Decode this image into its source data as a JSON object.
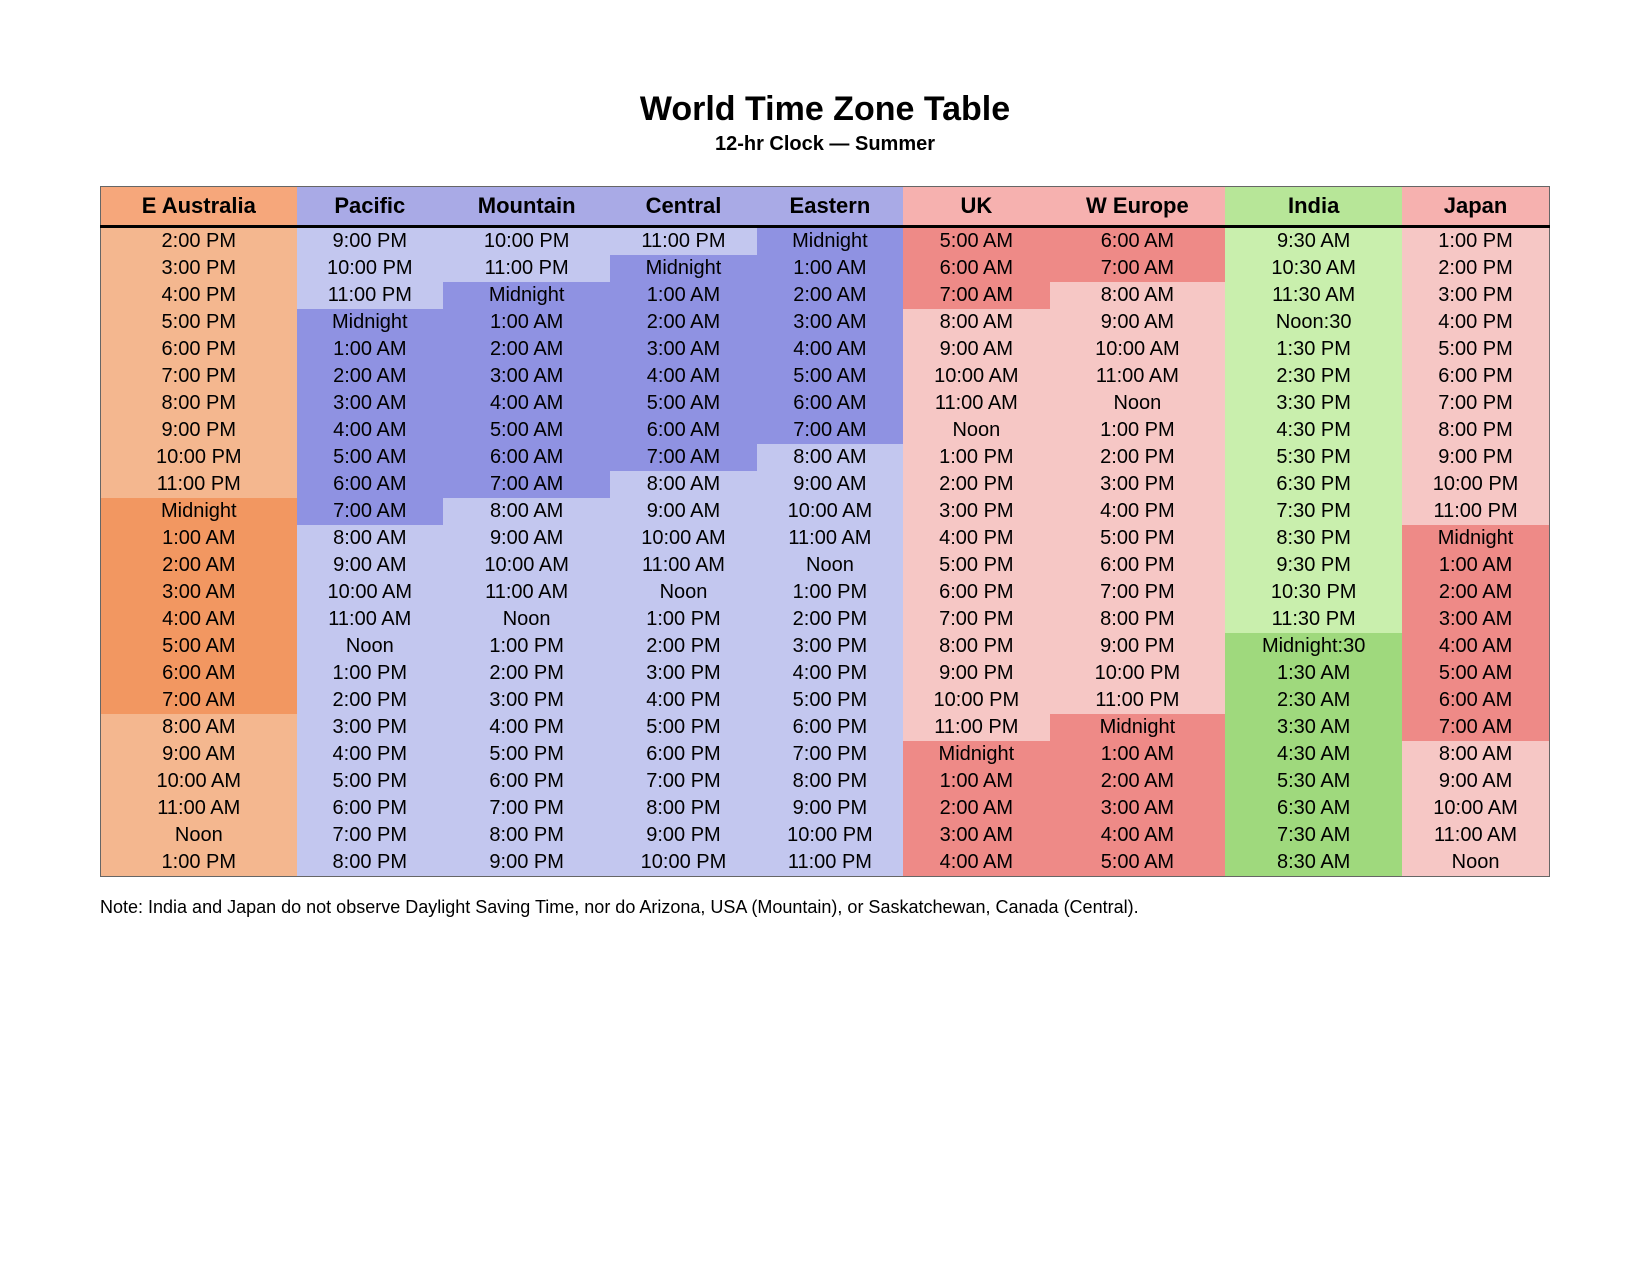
{
  "title": "World Time Zone Table",
  "subtitle": "12-hr Clock — Summer",
  "note": "Note: India and Japan do not observe Daylight Saving Time, nor do Arizona, USA (Mountain), or Saskatchewan, Canada (Central).",
  "columns": [
    {
      "label": "E Australia",
      "header_bg": "#f6a77b",
      "palette": [
        "#f4b78f",
        "#f29761"
      ]
    },
    {
      "label": "Pacific",
      "header_bg": "#a9aae6",
      "palette": [
        "#c3c7ef",
        "#8f92e2"
      ]
    },
    {
      "label": "Mountain",
      "header_bg": "#a9aae6",
      "palette": [
        "#c3c7ef",
        "#8f92e2"
      ]
    },
    {
      "label": "Central",
      "header_bg": "#a9aae6",
      "palette": [
        "#c3c7ef",
        "#8f92e2"
      ]
    },
    {
      "label": "Eastern",
      "header_bg": "#a9aae6",
      "palette": [
        "#c3c7ef",
        "#8f92e2"
      ]
    },
    {
      "label": "UK",
      "header_bg": "#f6b1af",
      "palette": [
        "#f6c7c5",
        "#ee8a87"
      ]
    },
    {
      "label": "W Europe",
      "header_bg": "#f6b1af",
      "palette": [
        "#f6c7c5",
        "#ee8a87"
      ]
    },
    {
      "label": "India",
      "header_bg": "#b7e698",
      "palette": [
        "#c9efad",
        "#9fd97d"
      ]
    },
    {
      "label": "Japan",
      "header_bg": "#f6b1af",
      "palette": [
        "#f6c7c5",
        "#ee8a87"
      ]
    }
  ],
  "rows": [
    [
      [
        "2:00 PM",
        0
      ],
      [
        "9:00 PM",
        0
      ],
      [
        "10:00 PM",
        0
      ],
      [
        "11:00 PM",
        0
      ],
      [
        "Midnight",
        1
      ],
      [
        "5:00 AM",
        1
      ],
      [
        "6:00 AM",
        1
      ],
      [
        "9:30 AM",
        0
      ],
      [
        "1:00 PM",
        0
      ]
    ],
    [
      [
        "3:00 PM",
        0
      ],
      [
        "10:00 PM",
        0
      ],
      [
        "11:00 PM",
        0
      ],
      [
        "Midnight",
        1
      ],
      [
        "1:00 AM",
        1
      ],
      [
        "6:00 AM",
        1
      ],
      [
        "7:00 AM",
        1
      ],
      [
        "10:30 AM",
        0
      ],
      [
        "2:00 PM",
        0
      ]
    ],
    [
      [
        "4:00 PM",
        0
      ],
      [
        "11:00 PM",
        0
      ],
      [
        "Midnight",
        1
      ],
      [
        "1:00 AM",
        1
      ],
      [
        "2:00 AM",
        1
      ],
      [
        "7:00 AM",
        1
      ],
      [
        "8:00 AM",
        0
      ],
      [
        "11:30 AM",
        0
      ],
      [
        "3:00 PM",
        0
      ]
    ],
    [
      [
        "5:00 PM",
        0
      ],
      [
        "Midnight",
        1
      ],
      [
        "1:00 AM",
        1
      ],
      [
        "2:00 AM",
        1
      ],
      [
        "3:00 AM",
        1
      ],
      [
        "8:00 AM",
        0
      ],
      [
        "9:00 AM",
        0
      ],
      [
        "Noon:30",
        0
      ],
      [
        "4:00 PM",
        0
      ]
    ],
    [
      [
        "6:00 PM",
        0
      ],
      [
        "1:00 AM",
        1
      ],
      [
        "2:00 AM",
        1
      ],
      [
        "3:00 AM",
        1
      ],
      [
        "4:00 AM",
        1
      ],
      [
        "9:00 AM",
        0
      ],
      [
        "10:00 AM",
        0
      ],
      [
        "1:30 PM",
        0
      ],
      [
        "5:00 PM",
        0
      ]
    ],
    [
      [
        "7:00 PM",
        0
      ],
      [
        "2:00 AM",
        1
      ],
      [
        "3:00 AM",
        1
      ],
      [
        "4:00 AM",
        1
      ],
      [
        "5:00 AM",
        1
      ],
      [
        "10:00 AM",
        0
      ],
      [
        "11:00 AM",
        0
      ],
      [
        "2:30 PM",
        0
      ],
      [
        "6:00 PM",
        0
      ]
    ],
    [
      [
        "8:00 PM",
        0
      ],
      [
        "3:00 AM",
        1
      ],
      [
        "4:00 AM",
        1
      ],
      [
        "5:00 AM",
        1
      ],
      [
        "6:00 AM",
        1
      ],
      [
        "11:00 AM",
        0
      ],
      [
        "Noon",
        0
      ],
      [
        "3:30 PM",
        0
      ],
      [
        "7:00 PM",
        0
      ]
    ],
    [
      [
        "9:00 PM",
        0
      ],
      [
        "4:00 AM",
        1
      ],
      [
        "5:00 AM",
        1
      ],
      [
        "6:00 AM",
        1
      ],
      [
        "7:00 AM",
        1
      ],
      [
        "Noon",
        0
      ],
      [
        "1:00 PM",
        0
      ],
      [
        "4:30 PM",
        0
      ],
      [
        "8:00 PM",
        0
      ]
    ],
    [
      [
        "10:00 PM",
        0
      ],
      [
        "5:00 AM",
        1
      ],
      [
        "6:00 AM",
        1
      ],
      [
        "7:00 AM",
        1
      ],
      [
        "8:00 AM",
        0
      ],
      [
        "1:00 PM",
        0
      ],
      [
        "2:00 PM",
        0
      ],
      [
        "5:30 PM",
        0
      ],
      [
        "9:00 PM",
        0
      ]
    ],
    [
      [
        "11:00 PM",
        0
      ],
      [
        "6:00 AM",
        1
      ],
      [
        "7:00 AM",
        1
      ],
      [
        "8:00 AM",
        0
      ],
      [
        "9:00 AM",
        0
      ],
      [
        "2:00 PM",
        0
      ],
      [
        "3:00 PM",
        0
      ],
      [
        "6:30 PM",
        0
      ],
      [
        "10:00 PM",
        0
      ]
    ],
    [
      [
        "Midnight",
        1
      ],
      [
        "7:00 AM",
        1
      ],
      [
        "8:00 AM",
        0
      ],
      [
        "9:00 AM",
        0
      ],
      [
        "10:00 AM",
        0
      ],
      [
        "3:00 PM",
        0
      ],
      [
        "4:00 PM",
        0
      ],
      [
        "7:30 PM",
        0
      ],
      [
        "11:00 PM",
        0
      ]
    ],
    [
      [
        "1:00 AM",
        1
      ],
      [
        "8:00 AM",
        0
      ],
      [
        "9:00 AM",
        0
      ],
      [
        "10:00 AM",
        0
      ],
      [
        "11:00 AM",
        0
      ],
      [
        "4:00 PM",
        0
      ],
      [
        "5:00 PM",
        0
      ],
      [
        "8:30 PM",
        0
      ],
      [
        "Midnight",
        1
      ]
    ],
    [
      [
        "2:00 AM",
        1
      ],
      [
        "9:00 AM",
        0
      ],
      [
        "10:00 AM",
        0
      ],
      [
        "11:00 AM",
        0
      ],
      [
        "Noon",
        0
      ],
      [
        "5:00 PM",
        0
      ],
      [
        "6:00 PM",
        0
      ],
      [
        "9:30 PM",
        0
      ],
      [
        "1:00 AM",
        1
      ]
    ],
    [
      [
        "3:00 AM",
        1
      ],
      [
        "10:00 AM",
        0
      ],
      [
        "11:00 AM",
        0
      ],
      [
        "Noon",
        0
      ],
      [
        "1:00 PM",
        0
      ],
      [
        "6:00 PM",
        0
      ],
      [
        "7:00 PM",
        0
      ],
      [
        "10:30 PM",
        0
      ],
      [
        "2:00 AM",
        1
      ]
    ],
    [
      [
        "4:00 AM",
        1
      ],
      [
        "11:00 AM",
        0
      ],
      [
        "Noon",
        0
      ],
      [
        "1:00 PM",
        0
      ],
      [
        "2:00 PM",
        0
      ],
      [
        "7:00 PM",
        0
      ],
      [
        "8:00 PM",
        0
      ],
      [
        "11:30 PM",
        0
      ],
      [
        "3:00 AM",
        1
      ]
    ],
    [
      [
        "5:00 AM",
        1
      ],
      [
        "Noon",
        0
      ],
      [
        "1:00 PM",
        0
      ],
      [
        "2:00 PM",
        0
      ],
      [
        "3:00 PM",
        0
      ],
      [
        "8:00 PM",
        0
      ],
      [
        "9:00 PM",
        0
      ],
      [
        "Midnight:30",
        1
      ],
      [
        "4:00 AM",
        1
      ]
    ],
    [
      [
        "6:00 AM",
        1
      ],
      [
        "1:00 PM",
        0
      ],
      [
        "2:00 PM",
        0
      ],
      [
        "3:00 PM",
        0
      ],
      [
        "4:00 PM",
        0
      ],
      [
        "9:00 PM",
        0
      ],
      [
        "10:00 PM",
        0
      ],
      [
        "1:30 AM",
        1
      ],
      [
        "5:00 AM",
        1
      ]
    ],
    [
      [
        "7:00 AM",
        1
      ],
      [
        "2:00 PM",
        0
      ],
      [
        "3:00 PM",
        0
      ],
      [
        "4:00 PM",
        0
      ],
      [
        "5:00 PM",
        0
      ],
      [
        "10:00 PM",
        0
      ],
      [
        "11:00 PM",
        0
      ],
      [
        "2:30 AM",
        1
      ],
      [
        "6:00 AM",
        1
      ]
    ],
    [
      [
        "8:00 AM",
        0
      ],
      [
        "3:00 PM",
        0
      ],
      [
        "4:00 PM",
        0
      ],
      [
        "5:00 PM",
        0
      ],
      [
        "6:00 PM",
        0
      ],
      [
        "11:00 PM",
        0
      ],
      [
        "Midnight",
        1
      ],
      [
        "3:30 AM",
        1
      ],
      [
        "7:00 AM",
        1
      ]
    ],
    [
      [
        "9:00 AM",
        0
      ],
      [
        "4:00 PM",
        0
      ],
      [
        "5:00 PM",
        0
      ],
      [
        "6:00 PM",
        0
      ],
      [
        "7:00 PM",
        0
      ],
      [
        "Midnight",
        1
      ],
      [
        "1:00 AM",
        1
      ],
      [
        "4:30 AM",
        1
      ],
      [
        "8:00 AM",
        0
      ]
    ],
    [
      [
        "10:00 AM",
        0
      ],
      [
        "5:00 PM",
        0
      ],
      [
        "6:00 PM",
        0
      ],
      [
        "7:00 PM",
        0
      ],
      [
        "8:00 PM",
        0
      ],
      [
        "1:00 AM",
        1
      ],
      [
        "2:00 AM",
        1
      ],
      [
        "5:30 AM",
        1
      ],
      [
        "9:00 AM",
        0
      ]
    ],
    [
      [
        "11:00 AM",
        0
      ],
      [
        "6:00 PM",
        0
      ],
      [
        "7:00 PM",
        0
      ],
      [
        "8:00 PM",
        0
      ],
      [
        "9:00 PM",
        0
      ],
      [
        "2:00 AM",
        1
      ],
      [
        "3:00 AM",
        1
      ],
      [
        "6:30 AM",
        1
      ],
      [
        "10:00 AM",
        0
      ]
    ],
    [
      [
        "Noon",
        0
      ],
      [
        "7:00 PM",
        0
      ],
      [
        "8:00 PM",
        0
      ],
      [
        "9:00 PM",
        0
      ],
      [
        "10:00 PM",
        0
      ],
      [
        "3:00 AM",
        1
      ],
      [
        "4:00 AM",
        1
      ],
      [
        "7:30 AM",
        1
      ],
      [
        "11:00 AM",
        0
      ]
    ],
    [
      [
        "1:00 PM",
        0
      ],
      [
        "8:00 PM",
        0
      ],
      [
        "9:00 PM",
        0
      ],
      [
        "10:00 PM",
        0
      ],
      [
        "11:00 PM",
        0
      ],
      [
        "4:00 AM",
        1
      ],
      [
        "5:00 AM",
        1
      ],
      [
        "8:30 AM",
        1
      ],
      [
        "Noon",
        0
      ]
    ]
  ]
}
